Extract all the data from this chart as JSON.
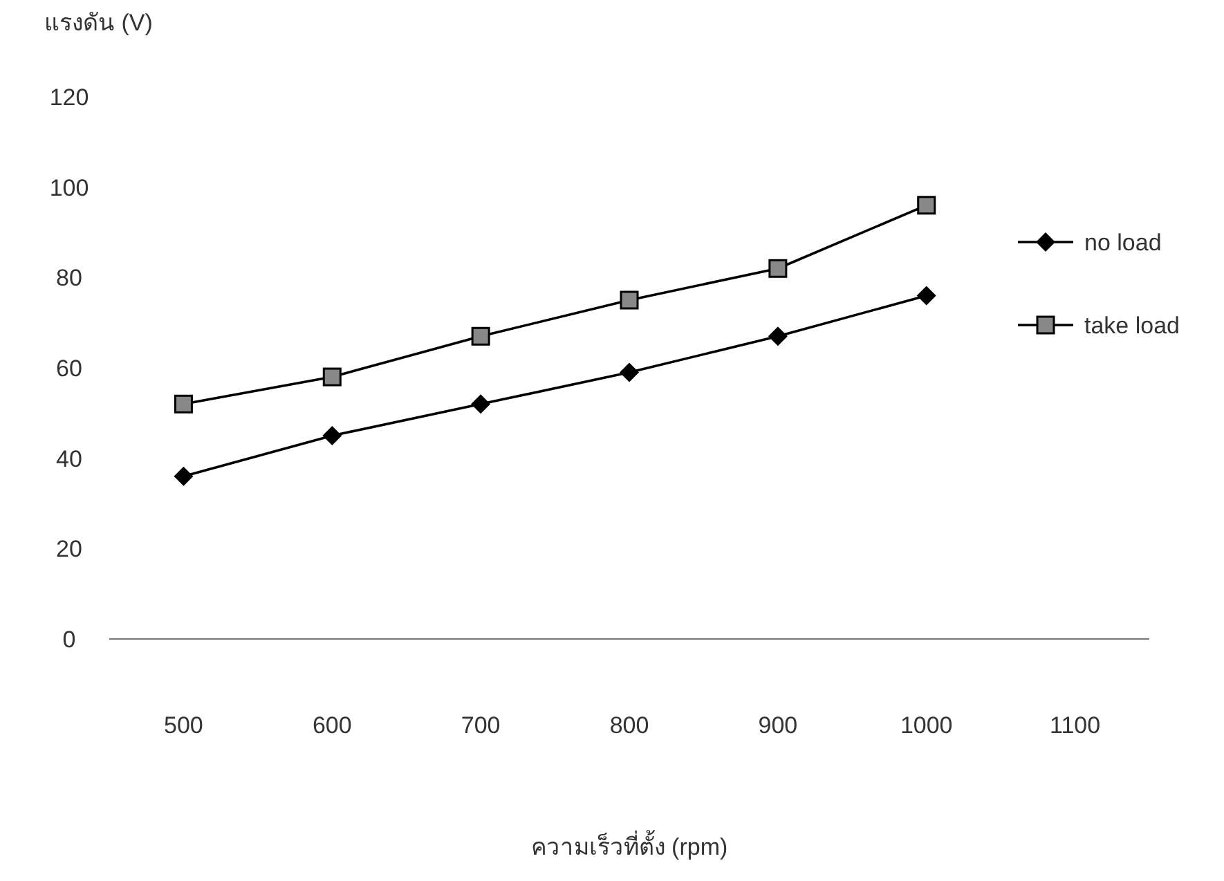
{
  "chart_data": {
    "type": "line",
    "xlabel": "ความเร็วที่ตั้ง (rpm)",
    "ylabel": "แรงดัน (V)",
    "categories": [
      "500",
      "600",
      "700",
      "800",
      "900",
      "1000",
      "1100"
    ],
    "series": [
      {
        "name": "no load",
        "color": "#000000",
        "marker": "diamond",
        "values": [
          36,
          45,
          52,
          59,
          67,
          76,
          null
        ]
      },
      {
        "name": "take load",
        "color": "#000000",
        "marker": "square",
        "values": [
          52,
          58,
          67,
          75,
          82,
          96,
          null
        ]
      }
    ],
    "ylim": [
      0,
      120
    ],
    "yticks": [
      0,
      20,
      40,
      60,
      80,
      100,
      120
    ],
    "grid": false,
    "legend": "right"
  }
}
